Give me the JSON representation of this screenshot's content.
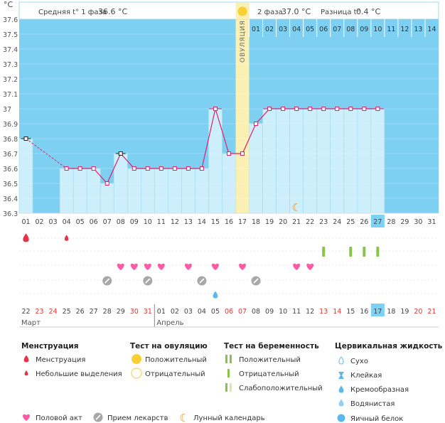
{
  "chart_data": {
    "type": "line",
    "unit": "°C",
    "header": {
      "phase1_label": "Средняя t° 1 фаза",
      "phase1_value": "36.6 °C",
      "phase2_label": "2 фаза",
      "phase2_value": "37.0 °C",
      "diff_label": "Разница t°",
      "diff_value": "0.4 °C"
    },
    "ylim": [
      36.3,
      37.6
    ],
    "y_ticks": [
      "37.6",
      "37.5",
      "37.4",
      "37.3",
      "37.2",
      "37.1",
      "37",
      "36.9",
      "36.8",
      "36.7",
      "36.6",
      "36.5",
      "36.4",
      "36.3"
    ],
    "x_cycle_days": [
      "01",
      "02",
      "03",
      "04",
      "05",
      "06",
      "07",
      "08",
      "09",
      "10",
      "11",
      "12",
      "13",
      "14",
      "15",
      "16",
      "17",
      "18",
      "19",
      "20",
      "21",
      "22",
      "23",
      "24",
      "25",
      "26",
      "27",
      "28",
      "29",
      "30",
      "31"
    ],
    "today_index": 26,
    "ovulation_index": 16,
    "ovulation_label": "ОВУЛЯЦИЯ",
    "phase2_day_numbers": [
      "01",
      "02",
      "03",
      "04",
      "05",
      "06",
      "07",
      "08",
      "09",
      "10",
      "11",
      "12",
      "13",
      "14"
    ],
    "temperatures": [
      36.8,
      null,
      null,
      36.6,
      36.6,
      36.6,
      36.5,
      36.7,
      36.6,
      36.6,
      36.6,
      36.6,
      36.6,
      36.6,
      37.0,
      36.7,
      36.7,
      36.9,
      37.0,
      37.0,
      37.0,
      37.0,
      37.0,
      37.0,
      37.0,
      37.0,
      37.0,
      null,
      null,
      null,
      null
    ],
    "dashed_segment": [
      0,
      3
    ],
    "calendar_dates": [
      {
        "d": "22",
        "red": false
      },
      {
        "d": "23",
        "red": true
      },
      {
        "d": "24",
        "red": true
      },
      {
        "d": "25",
        "red": false
      },
      {
        "d": "26",
        "red": false
      },
      {
        "d": "27",
        "red": false
      },
      {
        "d": "28",
        "red": false
      },
      {
        "d": "29",
        "red": false
      },
      {
        "d": "30",
        "red": true
      },
      {
        "d": "31",
        "red": true
      },
      {
        "d": "01",
        "red": false
      },
      {
        "d": "02",
        "red": false
      },
      {
        "d": "03",
        "red": false
      },
      {
        "d": "04",
        "red": false
      },
      {
        "d": "05",
        "red": false
      },
      {
        "d": "06",
        "red": true
      },
      {
        "d": "07",
        "red": true
      },
      {
        "d": "08",
        "red": false
      },
      {
        "d": "09",
        "red": false
      },
      {
        "d": "10",
        "red": false
      },
      {
        "d": "11",
        "red": false
      },
      {
        "d": "12",
        "red": false
      },
      {
        "d": "13",
        "red": true
      },
      {
        "d": "14",
        "red": true
      },
      {
        "d": "15",
        "red": false
      },
      {
        "d": "16",
        "red": false
      },
      {
        "d": "17",
        "red": false
      },
      {
        "d": "18",
        "red": false
      },
      {
        "d": "19",
        "red": false
      },
      {
        "d": "20",
        "red": true
      },
      {
        "d": "21",
        "red": true
      }
    ],
    "months": [
      "Март",
      "Апрель"
    ],
    "menstruation_days": [
      {
        "i": 0,
        "size": "large"
      },
      {
        "i": 3,
        "size": "small"
      }
    ],
    "pregnancy_test_days": [
      22,
      24,
      25,
      26
    ],
    "sex_days": [
      7,
      8,
      9,
      10,
      12,
      14,
      16,
      20,
      21
    ],
    "medication_days": [
      6,
      9,
      13,
      17
    ],
    "cervical_fluid_days": [
      {
        "i": 14,
        "kind": "creamy"
      }
    ],
    "moon_days": [
      20
    ],
    "colors": {
      "sky": "#7ed0f2",
      "bar": "#cdeefb",
      "bar_edge": "#9fdaf2",
      "line": "#e0216a",
      "ovulation": "#fbf0b4",
      "sun": "#f9cf33",
      "heart": "#ff5aa5",
      "pill": "#a8a8a8",
      "test_green": "#8bc34a",
      "drop_red": "#e6334a",
      "drop_blue": "#5ab8ee",
      "moon": "#f28c18",
      "today": "#7cd2f4",
      "red_text": "#e53935"
    }
  },
  "legend": {
    "menstruation": {
      "title": "Менструация",
      "items": [
        "Менструация",
        "Небольшие выделения"
      ]
    },
    "ovulation_test": {
      "title": "Тест на овуляцию",
      "items": [
        "Положительный",
        "Отрицательный"
      ]
    },
    "pregnancy_test": {
      "title": "Тест на беременность",
      "items": [
        "Положительный",
        "Отрицательный",
        "Слабоположительный"
      ]
    },
    "cervical": {
      "title": "Цервикальная жидкость",
      "items": [
        "Сухо",
        "Клейкая",
        "Кремообразная",
        "Водянистая",
        "Яичный белок"
      ]
    },
    "bottom": {
      "sex": "Половой акт",
      "medication": "Прием лекарств",
      "moon": "Лунный календарь"
    }
  }
}
